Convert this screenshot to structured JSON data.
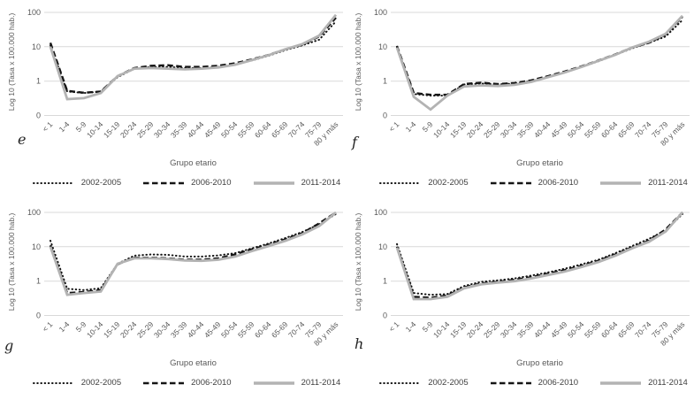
{
  "figure": {
    "panels": [
      "e",
      "f",
      "g",
      "h"
    ]
  },
  "colors": {
    "series_black": "#141414",
    "series_gray": "#b3b3b3",
    "gridline": "#d9d9d9",
    "tick_text": "#595959",
    "legend_text": "#404040"
  },
  "legend": {
    "items": [
      {
        "label": "2002-2005",
        "style": "dotted"
      },
      {
        "label": "2006-2010",
        "style": "dashed"
      },
      {
        "label": "2011-2014",
        "style": "solid"
      }
    ]
  },
  "chart_data": [
    {
      "type": "line",
      "panel_label": "e",
      "ylabel": "Log 10 (Tasa x 100.000 hab.)",
      "xlabel": "Grupo etario",
      "y_scale": "log10",
      "ylim": [
        0.1,
        100
      ],
      "grid": true,
      "legend_position": "bottom",
      "y_ticks": [
        {
          "label": "100",
          "value": 100
        },
        {
          "label": "10",
          "value": 10
        },
        {
          "label": "1",
          "value": 1
        },
        {
          "label": "0",
          "value": 0.1
        }
      ],
      "categories": [
        "< 1",
        "1-4",
        "5-9",
        "10-14",
        "15-19",
        "20-24",
        "25-29",
        "30-34",
        "35-39",
        "40-44",
        "45-49",
        "50-54",
        "55-59",
        "60-64",
        "65-69",
        "70-74",
        "75-79",
        "80 y más"
      ],
      "series": [
        {
          "name": "2002-2005",
          "style": "dotted",
          "values": [
            11,
            0.5,
            0.45,
            0.5,
            1.3,
            2.3,
            2.6,
            2.6,
            2.4,
            2.4,
            2.6,
            3.0,
            4.0,
            5.5,
            8.0,
            11,
            16,
            55
          ]
        },
        {
          "name": "2006-2010",
          "style": "dashed",
          "values": [
            13,
            0.52,
            0.46,
            0.5,
            1.4,
            2.4,
            2.8,
            2.9,
            2.6,
            2.6,
            2.8,
            3.3,
            4.3,
            5.8,
            8.5,
            11.5,
            20,
            70
          ]
        },
        {
          "name": "2011-2014",
          "style": "solid",
          "values": [
            10,
            0.3,
            0.32,
            0.45,
            1.4,
            2.3,
            2.4,
            2.3,
            2.2,
            2.3,
            2.5,
            3.0,
            4.1,
            5.7,
            8.5,
            12,
            21,
            85
          ]
        }
      ]
    },
    {
      "type": "line",
      "panel_label": "f",
      "ylabel": "Log 10 (Tasa x 100.000 hab.)",
      "xlabel": "Grupo etario",
      "y_scale": "log10",
      "ylim": [
        0.1,
        100
      ],
      "grid": true,
      "legend_position": "bottom",
      "y_ticks": [
        {
          "label": "100",
          "value": 100
        },
        {
          "label": "10",
          "value": 10
        },
        {
          "label": "1",
          "value": 1
        },
        {
          "label": "0",
          "value": 0.1
        }
      ],
      "categories": [
        "< 1",
        "1-4",
        "5-9",
        "10-14",
        "15-19",
        "20-24",
        "25-29",
        "30-34",
        "35-39",
        "40-44",
        "45-49",
        "50-54",
        "55-59",
        "60-64",
        "65-69",
        "70-74",
        "75-79",
        "80 y más"
      ],
      "series": [
        {
          "name": "2002-2005",
          "style": "dotted",
          "values": [
            10,
            0.42,
            0.38,
            0.38,
            0.8,
            0.85,
            0.8,
            0.85,
            1.0,
            1.35,
            1.8,
            2.6,
            3.8,
            5.8,
            9.0,
            13,
            20,
            60
          ]
        },
        {
          "name": "2006-2010",
          "style": "dashed",
          "values": [
            10.5,
            0.45,
            0.4,
            0.4,
            0.82,
            0.9,
            0.82,
            0.88,
            1.05,
            1.4,
            1.9,
            2.7,
            4.0,
            6.0,
            9.5,
            13,
            23,
            75
          ]
        },
        {
          "name": "2011-2014",
          "style": "solid",
          "values": [
            9.5,
            0.35,
            0.15,
            0.38,
            0.7,
            0.75,
            0.72,
            0.78,
            0.95,
            1.3,
            1.8,
            2.6,
            3.9,
            5.8,
            9.5,
            14,
            24,
            80
          ]
        }
      ]
    },
    {
      "type": "line",
      "panel_label": "g",
      "ylabel": "Log 10 (Tasa x 100.000 hab.)",
      "xlabel": "Grupo etario",
      "y_scale": "log10",
      "ylim": [
        0.1,
        100
      ],
      "grid": true,
      "legend_position": "bottom",
      "y_ticks": [
        {
          "label": "100",
          "value": 100
        },
        {
          "label": "10",
          "value": 10
        },
        {
          "label": "1",
          "value": 1
        },
        {
          "label": "0",
          "value": 0.1
        }
      ],
      "categories": [
        "< 1",
        "1-4",
        "5-9",
        "10-14",
        "15-19",
        "20-24",
        "25-29",
        "30-34",
        "35-39",
        "40-44",
        "45-49",
        "50-54",
        "55-59",
        "60-64",
        "65-69",
        "70-74",
        "75-79",
        "80 y más"
      ],
      "series": [
        {
          "name": "2002-2005",
          "style": "dotted",
          "values": [
            15,
            0.6,
            0.55,
            0.62,
            3.2,
            5.5,
            6.0,
            5.8,
            5.2,
            5.2,
            5.6,
            6.5,
            9.0,
            12.5,
            18,
            27,
            45,
            90
          ]
        },
        {
          "name": "2006-2010",
          "style": "dashed",
          "values": [
            11,
            0.45,
            0.48,
            0.55,
            3.1,
            4.8,
            4.8,
            4.6,
            4.2,
            4.2,
            4.6,
            6.0,
            8.5,
            11.5,
            16.5,
            25,
            48,
            100
          ]
        },
        {
          "name": "2011-2014",
          "style": "solid",
          "values": [
            10,
            0.4,
            0.45,
            0.5,
            3.2,
            4.6,
            4.6,
            4.4,
            4.0,
            3.9,
            4.2,
            5.2,
            7.5,
            10.5,
            15,
            23,
            40,
            100
          ]
        }
      ]
    },
    {
      "type": "line",
      "panel_label": "h",
      "ylabel": "Log 10 (Tasa x 100.000 hab.)",
      "xlabel": "Grupo etario",
      "y_scale": "log10",
      "ylim": [
        0.1,
        100
      ],
      "grid": true,
      "legend_position": "bottom",
      "y_ticks": [
        {
          "label": "100",
          "value": 100
        },
        {
          "label": "10",
          "value": 10
        },
        {
          "label": "1",
          "value": 1
        },
        {
          "label": "0",
          "value": 0.1
        }
      ],
      "categories": [
        "< 1",
        "1-4",
        "5-9",
        "10-14",
        "15-19",
        "20-24",
        "25-29",
        "30-34",
        "35-39",
        "40-44",
        "45-49",
        "50-54",
        "55-59",
        "60-64",
        "65-69",
        "70-74",
        "75-79",
        "80 y más"
      ],
      "series": [
        {
          "name": "2002-2005",
          "style": "dotted",
          "values": [
            12,
            0.45,
            0.4,
            0.42,
            0.72,
            0.95,
            1.05,
            1.2,
            1.45,
            1.8,
            2.3,
            3.1,
            4.2,
            6.5,
            10.5,
            17,
            30,
            90
          ]
        },
        {
          "name": "2006-2010",
          "style": "dashed",
          "values": [
            10,
            0.35,
            0.33,
            0.38,
            0.66,
            0.85,
            0.95,
            1.1,
            1.3,
            1.65,
            2.1,
            2.8,
            3.9,
            6.0,
            9.5,
            15,
            32,
            100
          ]
        },
        {
          "name": "2011-2014",
          "style": "solid",
          "values": [
            9.5,
            0.3,
            0.3,
            0.35,
            0.62,
            0.8,
            0.9,
            1.0,
            1.2,
            1.5,
            1.9,
            2.6,
            3.6,
            5.5,
            9.0,
            14,
            28,
            100
          ]
        }
      ]
    }
  ]
}
